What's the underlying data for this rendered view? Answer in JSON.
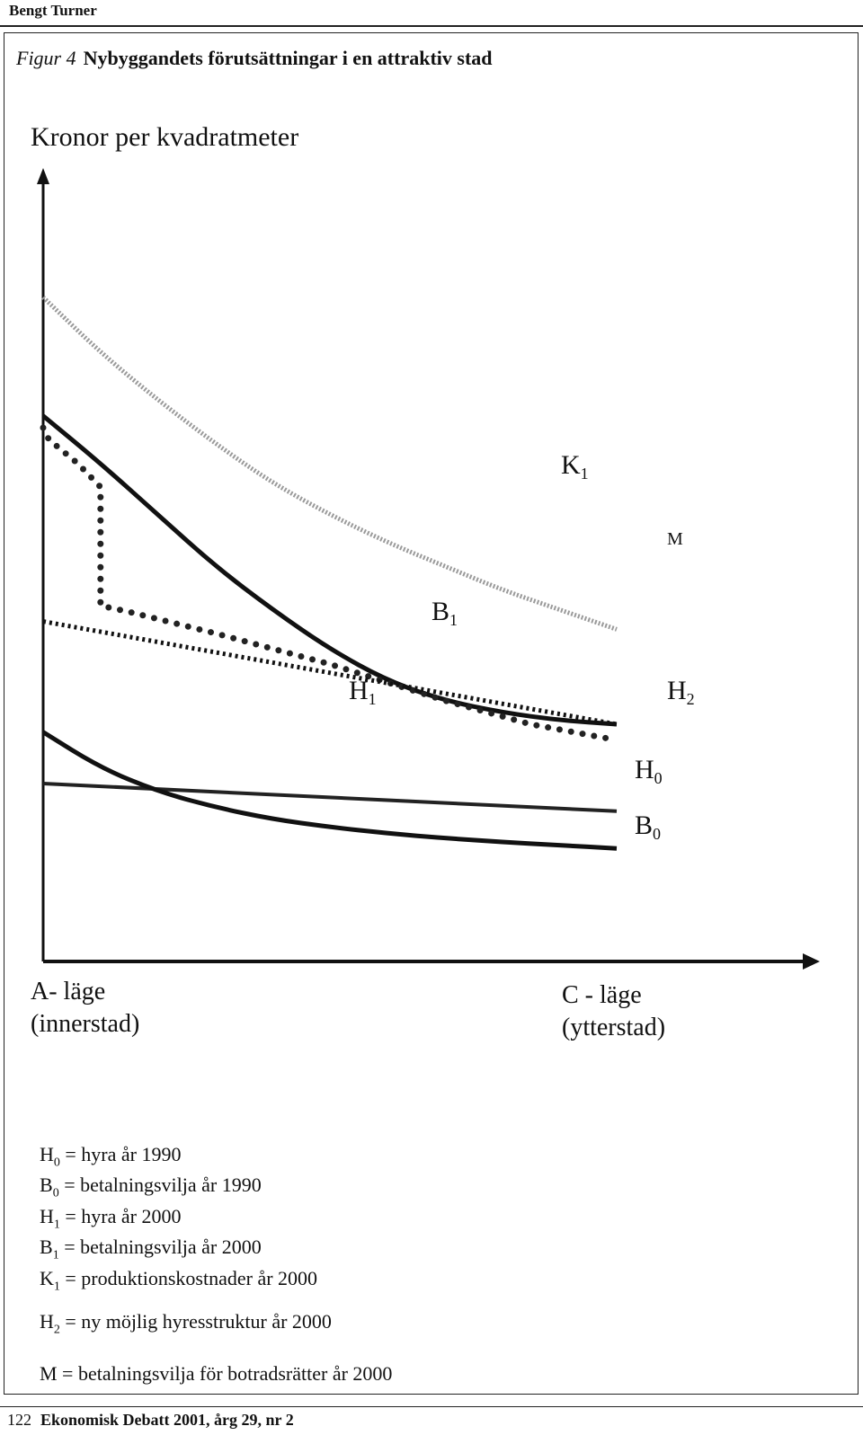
{
  "header": {
    "author": "Bengt Turner"
  },
  "figure": {
    "label": "Figur 4",
    "title": "Nybyggandets förutsättningar i en attraktiv stad"
  },
  "chart_data": {
    "type": "line",
    "ylabel": "Kronor per kvadratmeter",
    "xlabel_left": [
      "A- läge",
      "(innerstad)"
    ],
    "xlabel_right": [
      "C - läge",
      "(ytterstad)"
    ],
    "x_domain": [
      0,
      1
    ],
    "y_domain": [
      0,
      1
    ],
    "grid": false,
    "series": [
      {
        "name": "K1",
        "label_base": "K",
        "label_sub": "1",
        "style": "hatched",
        "color": "#9a9a9a",
        "x": [
          0,
          0.1,
          0.2,
          0.3,
          0.4,
          0.5,
          0.6,
          0.7,
          0.8,
          0.9,
          1.0
        ],
        "y": [
          0.84,
          0.77,
          0.71,
          0.655,
          0.605,
          0.565,
          0.53,
          0.5,
          0.47,
          0.445,
          0.42
        ]
      },
      {
        "name": "B1",
        "label_base": "B",
        "label_sub": "1",
        "style": "solid",
        "color": "#111111",
        "x": [
          0,
          0.1,
          0.2,
          0.3,
          0.4,
          0.5,
          0.6,
          0.7,
          0.8,
          0.9,
          1.0
        ],
        "y": [
          0.69,
          0.63,
          0.565,
          0.5,
          0.445,
          0.395,
          0.355,
          0.33,
          0.315,
          0.305,
          0.3
        ]
      },
      {
        "name": "H2",
        "label_base": "H",
        "label_sub": "2",
        "style": "dotted",
        "color": "#222222",
        "x": [
          0,
          0.01,
          0.06,
          0.1,
          0.1,
          0.15,
          0.3,
          0.5,
          0.7,
          0.85,
          1.0
        ],
        "y": [
          0.675,
          0.66,
          0.63,
          0.6,
          0.45,
          0.442,
          0.415,
          0.376,
          0.33,
          0.3,
          0.28
        ]
      },
      {
        "name": "H1",
        "label_base": "H",
        "label_sub": "1",
        "style": "dashed",
        "color": "#111111",
        "x": [
          0,
          1.0
        ],
        "y": [
          0.43,
          0.3
        ]
      },
      {
        "name": "H0",
        "label_base": "H",
        "label_sub": "0",
        "style": "solid-thin",
        "color": "#222222",
        "x": [
          0,
          1.0
        ],
        "y": [
          0.225,
          0.19
        ]
      },
      {
        "name": "B0",
        "label_base": "B",
        "label_sub": "0",
        "style": "solid",
        "color": "#111111",
        "x": [
          0,
          0.1,
          0.2,
          0.3,
          0.4,
          0.5,
          0.6,
          0.7,
          0.8,
          0.9,
          1.0
        ],
        "y": [
          0.29,
          0.245,
          0.215,
          0.195,
          0.18,
          0.17,
          0.162,
          0.156,
          0.151,
          0.147,
          0.143
        ]
      }
    ],
    "extra_labels": [
      {
        "text": "M"
      }
    ]
  },
  "legend": {
    "items": [
      {
        "base": "H",
        "sub": "0",
        "text": "= hyra år 1990"
      },
      {
        "base": "B",
        "sub": "0",
        "text": "= betalningsvilja år 1990"
      },
      {
        "base": "H",
        "sub": "1",
        "text": "= hyra år 2000"
      },
      {
        "base": "B",
        "sub": "1",
        "text": "= betalningsvilja år 2000"
      },
      {
        "base": "K",
        "sub": "1",
        "text": "= produktionskostnader år 2000"
      },
      {
        "base": "H",
        "sub": "2",
        "text": "= ny möjlig hyresstruktur år 2000"
      },
      {
        "base": "",
        "sub": "",
        "text": "M = betalningsvilja för botradsrätter år 2000"
      }
    ]
  },
  "footer": {
    "page": "122",
    "journal": "Ekonomisk Debatt 2001, årg 29, nr 2"
  }
}
